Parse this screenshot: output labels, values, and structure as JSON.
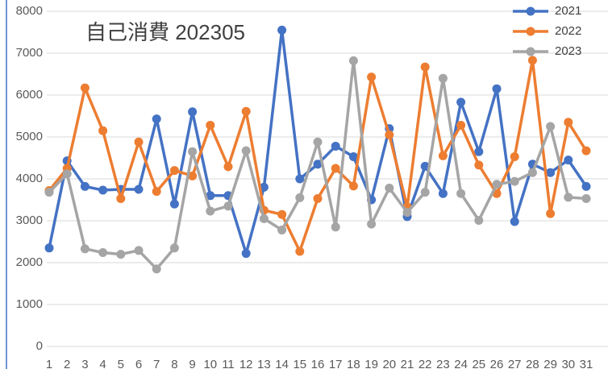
{
  "chart_data": {
    "type": "line",
    "title": "自己消費 202305",
    "categories": [
      "1",
      "2",
      "3",
      "4",
      "5",
      "6",
      "7",
      "8",
      "9",
      "10",
      "11",
      "12",
      "13",
      "14",
      "15",
      "16",
      "17",
      "18",
      "19",
      "20",
      "21",
      "22",
      "23",
      "24",
      "25",
      "26",
      "27",
      "28",
      "29",
      "30",
      "31"
    ],
    "series": [
      {
        "name": "2021",
        "color": "#4472c4",
        "values": [
          2350,
          4430,
          3820,
          3730,
          3750,
          3750,
          5430,
          3400,
          5600,
          3600,
          3600,
          2220,
          3800,
          7550,
          4000,
          4350,
          4780,
          4530,
          3500,
          5200,
          3100,
          4300,
          3650,
          5830,
          4650,
          6150,
          2980,
          4350,
          4150,
          4450,
          3820
        ]
      },
      {
        "name": "2022",
        "color": "#ed7d31",
        "values": [
          3720,
          4250,
          6170,
          5150,
          3530,
          4880,
          3700,
          4200,
          4070,
          5280,
          4290,
          5610,
          3250,
          3150,
          2270,
          3530,
          4250,
          3830,
          6430,
          5050,
          3330,
          6670,
          4550,
          5280,
          4330,
          3650,
          4530,
          6830,
          3170,
          5350,
          4670
        ]
      },
      {
        "name": "2023",
        "color": "#a5a5a5",
        "values": [
          3680,
          4120,
          2330,
          2240,
          2200,
          2290,
          1850,
          2350,
          4650,
          3230,
          3350,
          4670,
          3050,
          2780,
          3550,
          4880,
          2850,
          6820,
          2920,
          3780,
          3200,
          3680,
          6400,
          3650,
          3010,
          3870,
          3940,
          4150,
          5250,
          3560,
          3530
        ]
      }
    ],
    "ylim": [
      0,
      8000
    ],
    "yticks": [
      0,
      1000,
      2000,
      3000,
      4000,
      5000,
      6000,
      7000,
      8000
    ],
    "grid": true,
    "legend": "top-right"
  }
}
